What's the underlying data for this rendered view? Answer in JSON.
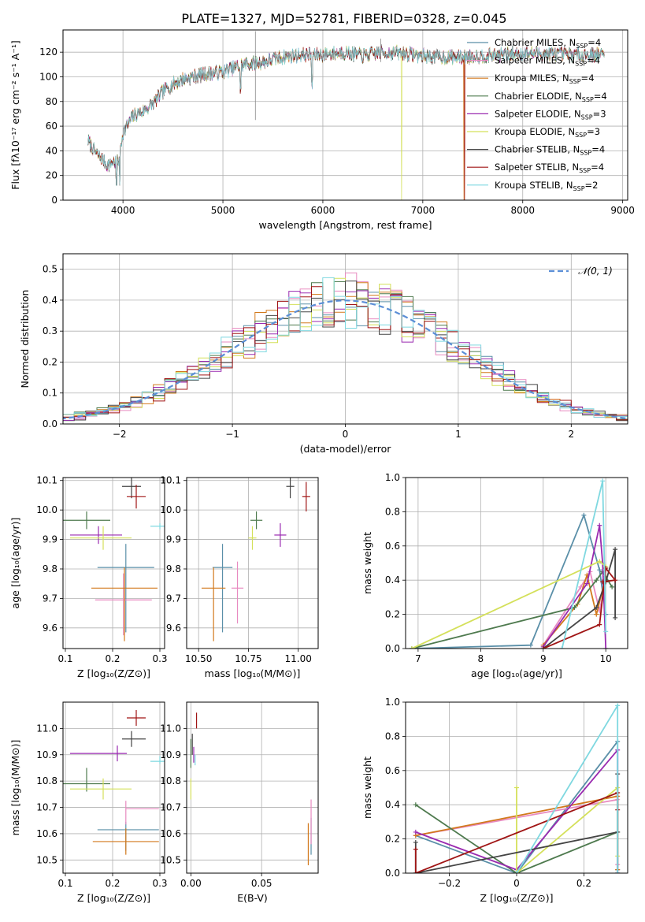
{
  "figure_title": "PLATE=1327, MJD=52781, FIBERID=0328, z=0.045",
  "models": [
    {
      "name": "Chabrier MILES",
      "nssp": "4",
      "color": "#5a8fa8"
    },
    {
      "name": "Salpeter MILES",
      "nssp": "4",
      "color": "#e88ac0"
    },
    {
      "name": "Kroupa MILES",
      "nssp": "4",
      "color": "#d2791c"
    },
    {
      "name": "Chabrier ELODIE",
      "nssp": "4",
      "color": "#4e7a4e"
    },
    {
      "name": "Salpeter ELODIE",
      "nssp": "3",
      "color": "#9a2ab0"
    },
    {
      "name": "Kroupa ELODIE",
      "nssp": "3",
      "color": "#d4e05a"
    },
    {
      "name": "Chabrier STELIB",
      "nssp": "4",
      "color": "#444444"
    },
    {
      "name": "Salpeter STELIB",
      "nssp": "4",
      "color": "#a01515"
    },
    {
      "name": "Kroupa STELIB",
      "nssp": "2",
      "color": "#7fd8e0"
    }
  ],
  "chart_data": [
    {
      "id": "spectrum",
      "type": "line",
      "xlabel": "wavelength [Angstrom, rest frame]",
      "ylabel": "Flux [fλ10⁻¹⁷ erg cm⁻² s⁻¹ A⁻¹]",
      "xlim": [
        3400,
        9050
      ],
      "ylim": [
        0,
        138
      ],
      "xticks": [
        4000,
        5000,
        6000,
        7000,
        8000,
        9000
      ],
      "yticks": [
        0,
        20,
        40,
        60,
        80,
        100,
        120
      ],
      "continuum_x": [
        3650,
        3700,
        3750,
        3800,
        3850,
        3900,
        3950,
        4000,
        4100,
        4200,
        4300,
        4400,
        4500,
        4600,
        4800,
        5000,
        5200,
        5400,
        5600,
        5800,
        6000,
        6200,
        6400,
        6600,
        6800,
        7000,
        7200,
        7400,
        7600,
        7800,
        8000,
        8200,
        8400,
        8600,
        8800
      ],
      "continuum_y": [
        48,
        42,
        36,
        33,
        28,
        32,
        30,
        55,
        68,
        72,
        78,
        88,
        94,
        98,
        102,
        104,
        110,
        112,
        116,
        118,
        118,
        120,
        117,
        120,
        119,
        117,
        116,
        116,
        117,
        118,
        119,
        119,
        118,
        118,
        118
      ],
      "dropouts": [
        {
          "model": 5,
          "x": 6790
        },
        {
          "model": 2,
          "x": 7410
        },
        {
          "model": 7,
          "x": 7420
        }
      ]
    },
    {
      "id": "residual_hist",
      "type": "step",
      "xlabel": "(data-model)/error",
      "ylabel": "Normed distribution",
      "xlim": [
        -2.5,
        2.5
      ],
      "ylim": [
        0,
        0.55
      ],
      "xticks": [
        -2,
        -1,
        0,
        1,
        2
      ],
      "yticks": [
        0.0,
        0.1,
        0.2,
        0.3,
        0.4,
        0.5
      ],
      "legend": "𝒩(0, 1)",
      "legend_location": "upper right",
      "bin_width": 0.1
    },
    {
      "id": "age_vs_Z",
      "type": "errorbar",
      "xlabel": "Z [log₁₀(Z/Z⊙)]",
      "ylabel": "age  [log₁₀(age/yr)]",
      "xlim": [
        0.095,
        0.31
      ],
      "ylim": [
        9.53,
        10.11
      ],
      "xticks": [
        0.1,
        0.2,
        0.3
      ],
      "yticks": [
        9.6,
        9.7,
        9.8,
        9.9,
        10.0,
        10.1
      ],
      "points": [
        {
          "model": 0,
          "x": 0.228,
          "y": 9.805,
          "xerr": [
            0.06,
            0.06
          ],
          "yerr": [
            0.22,
            0.08
          ]
        },
        {
          "model": 1,
          "x": 0.223,
          "y": 9.695,
          "xerr": [
            0.06,
            0.06
          ],
          "yerr": [
            0.12,
            0.09
          ]
        },
        {
          "model": 2,
          "x": 0.225,
          "y": 9.735,
          "xerr": [
            0.07,
            0.07
          ],
          "yerr": [
            0.18,
            0.07
          ]
        },
        {
          "model": 3,
          "x": 0.145,
          "y": 9.965,
          "xerr": [
            0.05,
            0.05
          ],
          "yerr": [
            0.03,
            0.03
          ]
        },
        {
          "model": 4,
          "x": 0.17,
          "y": 9.915,
          "xerr": [
            0.06,
            0.05
          ],
          "yerr": [
            0.03,
            0.03
          ]
        },
        {
          "model": 5,
          "x": 0.18,
          "y": 9.905,
          "xerr": [
            0.07,
            0.06
          ],
          "yerr": [
            0.04,
            0.04
          ]
        },
        {
          "model": 6,
          "x": 0.24,
          "y": 10.08,
          "xerr": [
            0.02,
            0.02
          ],
          "yerr": [
            0.04,
            0.04
          ]
        },
        {
          "model": 7,
          "x": 0.25,
          "y": 10.045,
          "xerr": [
            0.02,
            0.02
          ],
          "yerr": [
            0.04,
            0.04
          ]
        },
        {
          "model": 8,
          "x": 0.3,
          "y": 9.945,
          "xerr": [
            0.02,
            0.01
          ],
          "yerr": [
            0.01,
            0.01
          ]
        }
      ]
    },
    {
      "id": "age_vs_mass",
      "type": "errorbar",
      "xlabel": "mass [log₁₀(M/M⊙)]",
      "ylabel": "",
      "xlim": [
        10.44,
        11.1
      ],
      "ylim": [
        9.53,
        10.11
      ],
      "xticks": [
        10.5,
        10.75,
        11.0
      ],
      "xticklabels": [
        "10.50",
        "10.75",
        "11.00"
      ],
      "yticks": [
        9.6,
        9.7,
        9.8,
        9.9,
        10.0,
        10.1
      ],
      "points": [
        {
          "model": 0,
          "x": 10.62,
          "y": 9.805,
          "xerr": [
            0.05,
            0.05
          ],
          "yerr": [
            0.22,
            0.08
          ]
        },
        {
          "model": 1,
          "x": 10.695,
          "y": 9.735,
          "xerr": [
            0.03,
            0.03
          ],
          "yerr": [
            0.12,
            0.09
          ]
        },
        {
          "model": 2,
          "x": 10.575,
          "y": 9.735,
          "xerr": [
            0.06,
            0.06
          ],
          "yerr": [
            0.18,
            0.07
          ]
        },
        {
          "model": 3,
          "x": 10.79,
          "y": 9.965,
          "xerr": [
            0.03,
            0.03
          ],
          "yerr": [
            0.03,
            0.03
          ]
        },
        {
          "model": 4,
          "x": 10.91,
          "y": 9.915,
          "xerr": [
            0.03,
            0.03
          ],
          "yerr": [
            0.04,
            0.04
          ]
        },
        {
          "model": 5,
          "x": 10.77,
          "y": 9.905,
          "xerr": [
            0.02,
            0.02
          ],
          "yerr": [
            0.04,
            0.04
          ]
        },
        {
          "model": 6,
          "x": 10.96,
          "y": 10.08,
          "xerr": [
            0.02,
            0.02
          ],
          "yerr": [
            0.04,
            0.04
          ]
        },
        {
          "model": 7,
          "x": 11.04,
          "y": 10.045,
          "xerr": [
            0.02,
            0.02
          ],
          "yerr": [
            0.05,
            0.05
          ]
        }
      ]
    },
    {
      "id": "mass_weight_vs_age",
      "type": "line",
      "xlabel": "age  [log₁₀(age/yr)]",
      "ylabel": "mass weight",
      "xlim": [
        6.8,
        10.35
      ],
      "ylim": [
        0,
        1.0
      ],
      "xticks": [
        7,
        8,
        9,
        10
      ],
      "yticks": [
        0.0,
        0.2,
        0.4,
        0.6,
        0.8,
        1.0
      ],
      "series": [
        {
          "model": 0,
          "x": [
            6.9,
            8.8,
            9.65,
            9.9,
            10.0
          ],
          "y": [
            0.0,
            0.02,
            0.78,
            0.46,
            0.2
          ]
        },
        {
          "model": 1,
          "x": [
            9.0,
            9.6,
            9.75,
            9.9,
            10.0
          ],
          "y": [
            0.02,
            0.36,
            0.45,
            0.22,
            0.4
          ]
        },
        {
          "model": 2,
          "x": [
            9.0,
            9.55,
            9.7,
            9.85,
            10.0
          ],
          "y": [
            0.02,
            0.26,
            0.43,
            0.2,
            0.42
          ]
        },
        {
          "model": 3,
          "x": [
            6.9,
            9.5,
            9.85,
            9.95,
            10.1
          ],
          "y": [
            0.0,
            0.24,
            0.4,
            0.45,
            0.36
          ]
        },
        {
          "model": 4,
          "x": [
            9.0,
            9.7,
            9.9,
            9.95,
            10.0
          ],
          "y": [
            0.01,
            0.38,
            0.72,
            0.5,
            0.0
          ]
        },
        {
          "model": 5,
          "x": [
            6.9,
            9.9,
            10.0
          ],
          "y": [
            0.0,
            0.51,
            0.48
          ]
        },
        {
          "model": 6,
          "x": [
            9.0,
            9.85,
            10.0,
            10.15,
            10.15
          ],
          "y": [
            0.0,
            0.24,
            0.39,
            0.58,
            0.18
          ]
        },
        {
          "model": 7,
          "x": [
            9.0,
            9.9,
            10.0,
            10.15,
            9.95
          ],
          "y": [
            0.0,
            0.14,
            0.47,
            0.4,
            0.39
          ]
        },
        {
          "model": 8,
          "x": [
            9.3,
            9.95,
            10.0
          ],
          "y": [
            0.0,
            0.98,
            0.1
          ]
        }
      ]
    },
    {
      "id": "mass_vs_Z",
      "type": "errorbar",
      "xlabel": "Z [log₁₀(Z/Z⊙)]",
      "ylabel": "mass [log₁₀(M/M⊙)]",
      "xlim": [
        0.095,
        0.31
      ],
      "ylim": [
        10.45,
        11.1
      ],
      "xticks": [
        0.1,
        0.2,
        0.3
      ],
      "yticks": [
        10.5,
        10.6,
        10.7,
        10.8,
        10.9,
        11.0
      ],
      "points": [
        {
          "model": 0,
          "x": 0.228,
          "y": 10.615,
          "xerr": [
            0.06,
            0.07
          ],
          "yerr": [
            0.08,
            0.03
          ]
        },
        {
          "model": 1,
          "x": 0.228,
          "y": 10.695,
          "xerr": [
            0.0,
            0.07
          ],
          "yerr": [
            0.06,
            0.03
          ]
        },
        {
          "model": 2,
          "x": 0.228,
          "y": 10.57,
          "xerr": [
            0.07,
            0.07
          ],
          "yerr": [
            0.05,
            0.05
          ]
        },
        {
          "model": 3,
          "x": 0.145,
          "y": 10.79,
          "xerr": [
            0.05,
            0.05
          ],
          "yerr": [
            0.03,
            0.06
          ]
        },
        {
          "model": 4,
          "x": 0.21,
          "y": 10.905,
          "xerr": [
            0.1,
            0.02
          ],
          "yerr": [
            0.03,
            0.03
          ]
        },
        {
          "model": 5,
          "x": 0.18,
          "y": 10.77,
          "xerr": [
            0.07,
            0.06
          ],
          "yerr": [
            0.04,
            0.04
          ]
        },
        {
          "model": 6,
          "x": 0.24,
          "y": 10.96,
          "xerr": [
            0.02,
            0.03
          ],
          "yerr": [
            0.03,
            0.03
          ]
        },
        {
          "model": 7,
          "x": 0.25,
          "y": 11.04,
          "xerr": [
            0.02,
            0.02
          ],
          "yerr": [
            0.03,
            0.03
          ]
        },
        {
          "model": 8,
          "x": 0.3,
          "y": 10.875,
          "xerr": [
            0.02,
            0.01
          ],
          "yerr": [
            0.01,
            0.02
          ]
        }
      ]
    },
    {
      "id": "mass_vs_ebv",
      "type": "errorbar",
      "xlabel": "E(B-V)",
      "ylabel": "",
      "xlim": [
        -0.003,
        0.09
      ],
      "ylim": [
        10.45,
        11.1
      ],
      "xticks": [
        0.0,
        0.05
      ],
      "xticklabels": [
        "0.00",
        "0.05"
      ],
      "yticks": [
        10.5,
        10.6,
        10.7,
        10.8,
        10.9,
        11.0
      ],
      "points": [
        {
          "model": 0,
          "x": 0.085,
          "y": 10.59,
          "xerr": [
            0,
            0
          ],
          "yerr": [
            0.07,
            0.07
          ]
        },
        {
          "model": 1,
          "x": 0.085,
          "y": 10.64,
          "xerr": [
            0,
            0
          ],
          "yerr": [
            0.08,
            0.09
          ]
        },
        {
          "model": 2,
          "x": 0.083,
          "y": 10.57,
          "xerr": [
            0,
            0
          ],
          "yerr": [
            0.09,
            0.07
          ]
        },
        {
          "model": 3,
          "x": 0.0,
          "y": 10.9,
          "xerr": [
            0,
            0
          ],
          "yerr": [
            0.05,
            0.06
          ]
        },
        {
          "model": 4,
          "x": 0.002,
          "y": 10.9,
          "xerr": [
            0,
            0
          ],
          "yerr": [
            0.03,
            0.03
          ]
        },
        {
          "model": 5,
          "x": 0.0,
          "y": 10.77,
          "xerr": [
            0,
            0
          ],
          "yerr": [
            0.04,
            0.04
          ]
        },
        {
          "model": 6,
          "x": 0.001,
          "y": 10.94,
          "xerr": [
            0,
            0
          ],
          "yerr": [
            0.04,
            0.04
          ]
        },
        {
          "model": 7,
          "x": 0.004,
          "y": 11.03,
          "xerr": [
            0,
            0
          ],
          "yerr": [
            0.03,
            0.03
          ]
        },
        {
          "model": 8,
          "x": 0.003,
          "y": 10.88,
          "xerr": [
            0,
            0
          ],
          "yerr": [
            0.02,
            0.02
          ]
        }
      ]
    },
    {
      "id": "mass_weight_vs_Z",
      "type": "line",
      "xlabel": "Z [log₁₀(Z/Z⊙)]",
      "ylabel": "mass weight",
      "xlim": [
        -0.33,
        0.33
      ],
      "ylim": [
        0,
        1.0
      ],
      "xticks": [
        -0.2,
        0.0,
        0.2
      ],
      "yticks": [
        0.0,
        0.2,
        0.4,
        0.6,
        0.8,
        1.0
      ],
      "series": [
        {
          "model": 0,
          "x": [
            -0.3,
            0.0,
            0.3,
            0.3
          ],
          "y": [
            0.22,
            0.0,
            0.77,
            0.02
          ]
        },
        {
          "model": 1,
          "x": [
            -0.3,
            0.3,
            0.3
          ],
          "y": [
            0.22,
            0.43,
            0.05
          ]
        },
        {
          "model": 2,
          "x": [
            -0.3,
            0.3,
            0.3
          ],
          "y": [
            0.22,
            0.45,
            0.02
          ]
        },
        {
          "model": 3,
          "x": [
            -0.3,
            0.0,
            0.3,
            0.3
          ],
          "y": [
            0.4,
            0.0,
            0.24,
            0.0
          ]
        },
        {
          "model": 4,
          "x": [
            -0.3,
            0.0,
            0.3,
            0.3
          ],
          "y": [
            0.24,
            0.02,
            0.72,
            0.0
          ]
        },
        {
          "model": 5,
          "x": [
            0.0,
            0.0,
            0.3,
            0.3
          ],
          "y": [
            0.5,
            0.0,
            0.5,
            0.1
          ]
        },
        {
          "model": 6,
          "x": [
            -0.3,
            -0.3,
            0.3,
            0.3
          ],
          "y": [
            0.18,
            0.0,
            0.24,
            0.58
          ]
        },
        {
          "model": 7,
          "x": [
            -0.3,
            -0.3,
            0.3,
            0.3
          ],
          "y": [
            0.14,
            0.0,
            0.47,
            0.37
          ]
        },
        {
          "model": 8,
          "x": [
            0.0,
            0.3,
            0.3
          ],
          "y": [
            0.0,
            0.98,
            0.0
          ]
        }
      ]
    }
  ]
}
